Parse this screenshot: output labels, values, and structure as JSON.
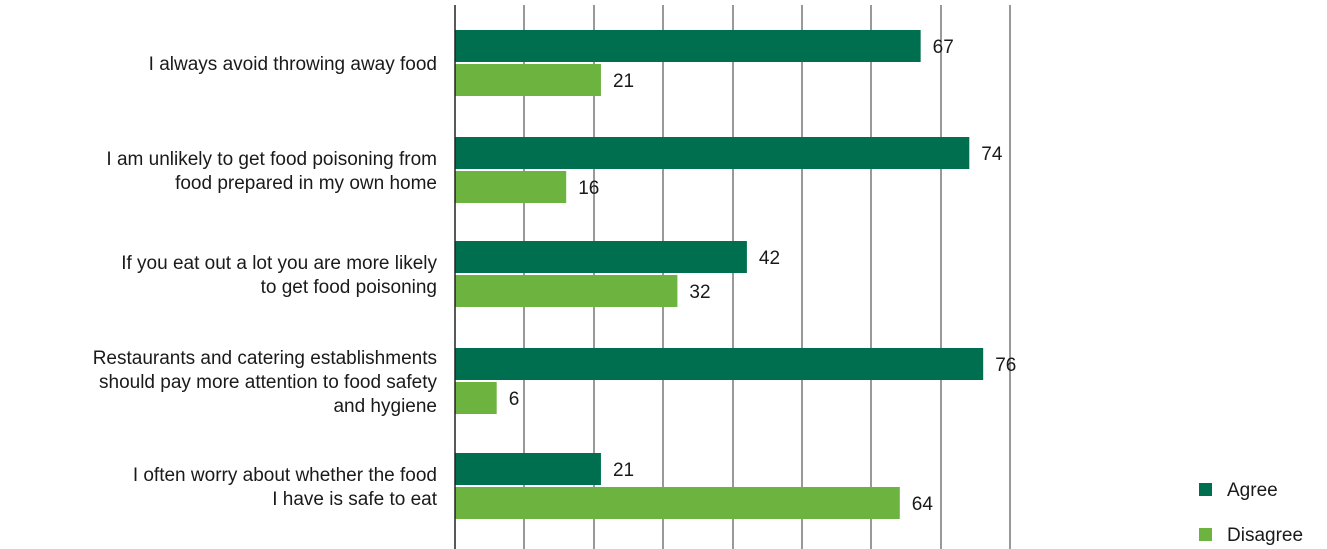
{
  "chart_data": {
    "type": "bar",
    "orientation": "horizontal",
    "categories": [
      "I always avoid throwing away food",
      "I am unlikely to get food poisoning from food prepared in my own home",
      "If you eat out a lot you are more likely to get food poisoning",
      "Restaurants and catering establishments should pay more attention to food safety and hygiene",
      "I often worry about whether the food I have is safe to eat"
    ],
    "category_lines": [
      [
        "I always avoid throwing away food"
      ],
      [
        "I am unlikely to get food poisoning from",
        "food prepared in my own home"
      ],
      [
        "If you eat out a lot you are more likely",
        "to get food poisoning"
      ],
      [
        "Restaurants and catering establishments",
        "should pay more attention to food safety",
        "and hygiene"
      ],
      [
        "I often worry about whether the food",
        "I have is safe to eat"
      ]
    ],
    "series": [
      {
        "name": "Agree",
        "color": "#006f4f",
        "values": [
          67,
          74,
          42,
          76,
          21
        ]
      },
      {
        "name": "Disagree",
        "color": "#6db33f",
        "values": [
          21,
          16,
          32,
          6,
          64
        ]
      }
    ],
    "xlim": [
      0,
      100
    ],
    "grid": true,
    "gridline_count": 8,
    "legend_placement": "bottom-right",
    "title": "",
    "xlabel": "",
    "ylabel": ""
  }
}
